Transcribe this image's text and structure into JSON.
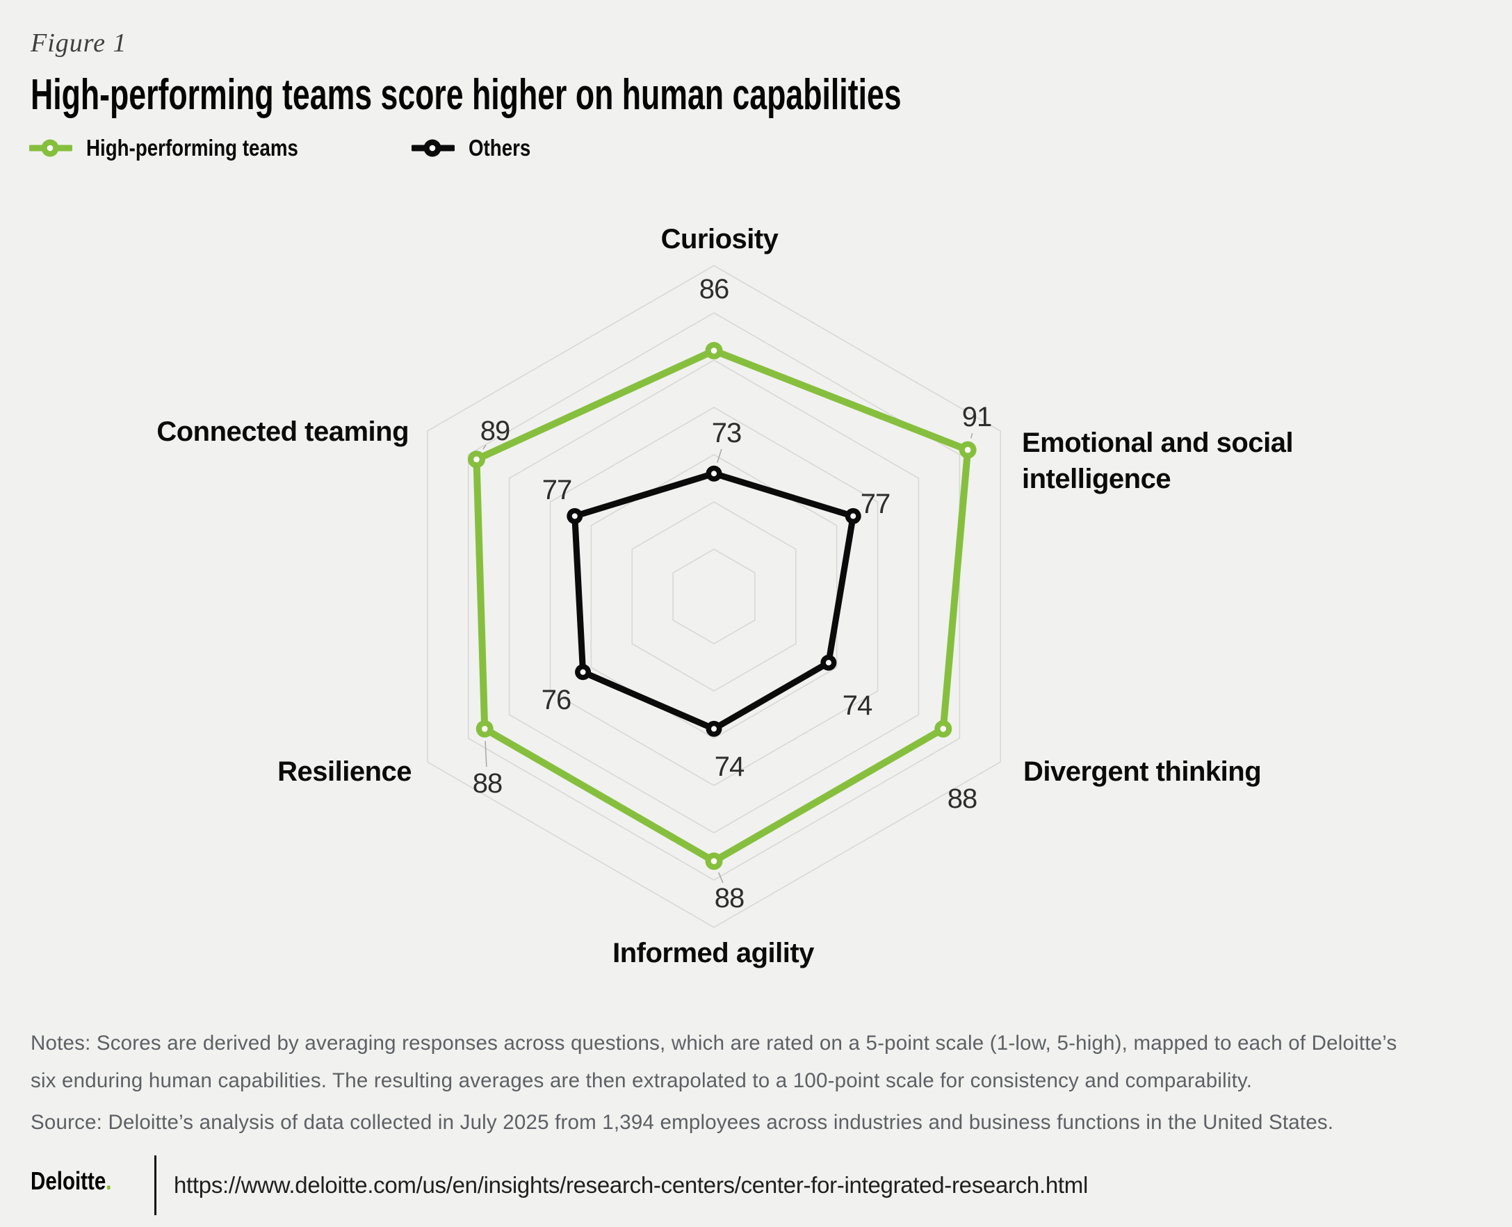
{
  "figure_label": "Figure 1",
  "title": "High-performing teams score higher on human capabilities",
  "legend": {
    "items": [
      {
        "label": "High-performing teams",
        "color": "#86bf3e"
      },
      {
        "label": "Others",
        "color": "#0b0b0b"
      }
    ]
  },
  "chart_data": {
    "type": "radar",
    "title": "High-performing teams score higher on human capabilities",
    "categories": [
      "Curiosity",
      "Emotional and social intelligence",
      "Divergent thinking",
      "Informed agility",
      "Resilience",
      "Connected teaming"
    ],
    "series": [
      {
        "name": "High-performing teams",
        "color": "#86bf3e",
        "values": [
          86,
          91,
          88,
          88,
          88,
          89
        ]
      },
      {
        "name": "Others",
        "color": "#0b0b0b",
        "values": [
          73,
          77,
          74,
          74,
          76,
          77
        ]
      }
    ],
    "scale": {
      "center_value": 60,
      "max_value": 95,
      "ring_values": [
        65,
        70,
        75,
        80,
        85,
        90,
        95
      ]
    },
    "grid_shape": "hexagon",
    "grid_color": "#d8d8d6",
    "legend_position": "top-left"
  },
  "notes": "Notes: Scores are derived by averaging responses across questions, which are rated on a 5-point scale (1-low, 5-high), mapped to each of Deloitte’s six enduring human capabilities. The resulting averages are then extrapolated to a 100-point scale for consistency and comparability.",
  "source": "Source: Deloitte’s analysis of data collected in July 2025 from 1,394 employees across industries and business functions in the United States.",
  "footer": {
    "brand": "Deloitte",
    "brand_dot": ".",
    "url": "https://www.deloitte.com/us/en/insights/research-centers/center-for-integrated-research.html"
  }
}
